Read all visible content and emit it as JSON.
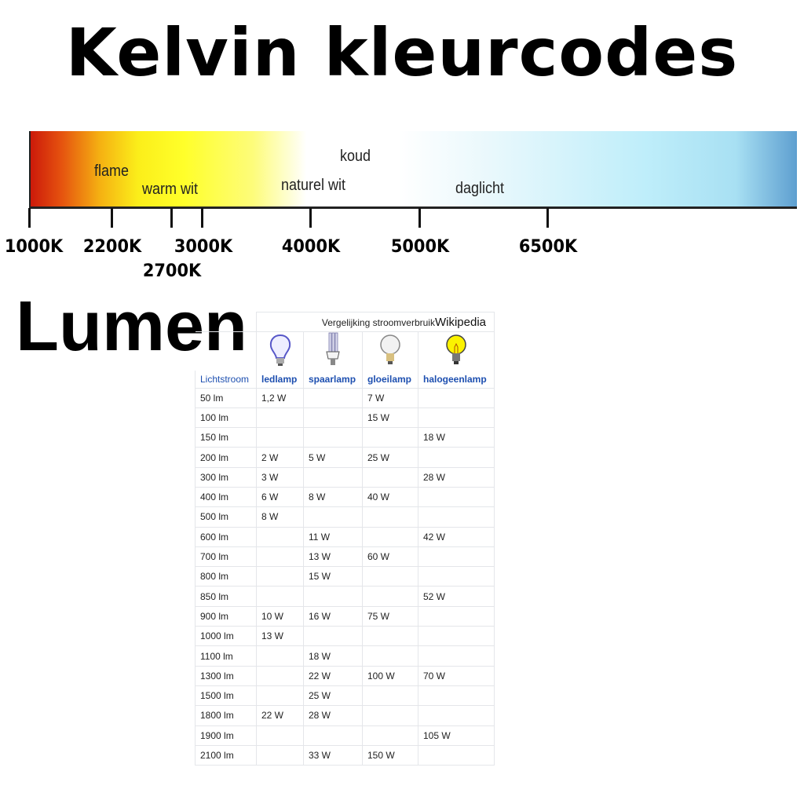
{
  "title": "Kelvin kleurcodes",
  "scale": {
    "labels": [
      "flame",
      "warm wit",
      "koud",
      "naturel wit",
      "daglicht"
    ],
    "ticks": [
      "1000K",
      "2200K",
      "2700K",
      "3000K",
      "4000K",
      "5000K",
      "6500K"
    ],
    "colors": [
      "#cc1a0a",
      "#fbee1a",
      "#ffffff",
      "#bfeefa",
      "#5e9fd0"
    ]
  },
  "lumen_title": "Lumen",
  "table": {
    "caption": "Vergelijking stroomverbruik",
    "source": "Wikipedia",
    "headers": [
      "Lichtstroom",
      "ledlamp",
      "spaarlamp",
      "gloeilamp",
      "halogeenlamp"
    ],
    "icons": [
      "led-bulb-icon",
      "cfl-bulb-icon",
      "incandescent-bulb-icon",
      "halogen-bulb-icon"
    ],
    "rows": [
      [
        "50 lm",
        "1,2 W",
        "",
        "7 W",
        ""
      ],
      [
        "100 lm",
        "",
        "",
        "15 W",
        ""
      ],
      [
        "150 lm",
        "",
        "",
        "",
        "18 W"
      ],
      [
        "200 lm",
        "2 W",
        "5 W",
        "25 W",
        ""
      ],
      [
        "300 lm",
        "3 W",
        "",
        "",
        "28 W"
      ],
      [
        "400 lm",
        "6 W",
        "8 W",
        "40 W",
        ""
      ],
      [
        "500 lm",
        "8 W",
        "",
        "",
        ""
      ],
      [
        "600 lm",
        "",
        "11 W",
        "",
        "42 W"
      ],
      [
        "700 lm",
        "",
        "13 W",
        "60 W",
        ""
      ],
      [
        "800 lm",
        "",
        "15 W",
        "",
        ""
      ],
      [
        "850 lm",
        "",
        "",
        "",
        "52 W"
      ],
      [
        "900 lm",
        "10 W",
        "16 W",
        "75 W",
        ""
      ],
      [
        "1000 lm",
        "13 W",
        "",
        "",
        ""
      ],
      [
        "1100 lm",
        "",
        "18 W",
        "",
        ""
      ],
      [
        "1300 lm",
        "",
        "22 W",
        "100 W",
        "70 W"
      ],
      [
        "1500 lm",
        "",
        "25 W",
        "",
        ""
      ],
      [
        "1800 lm",
        "22 W",
        "28 W",
        "",
        ""
      ],
      [
        "1900 lm",
        "",
        "",
        "",
        "105 W"
      ],
      [
        "2100 lm",
        "",
        "33 W",
        "150 W",
        ""
      ]
    ]
  }
}
